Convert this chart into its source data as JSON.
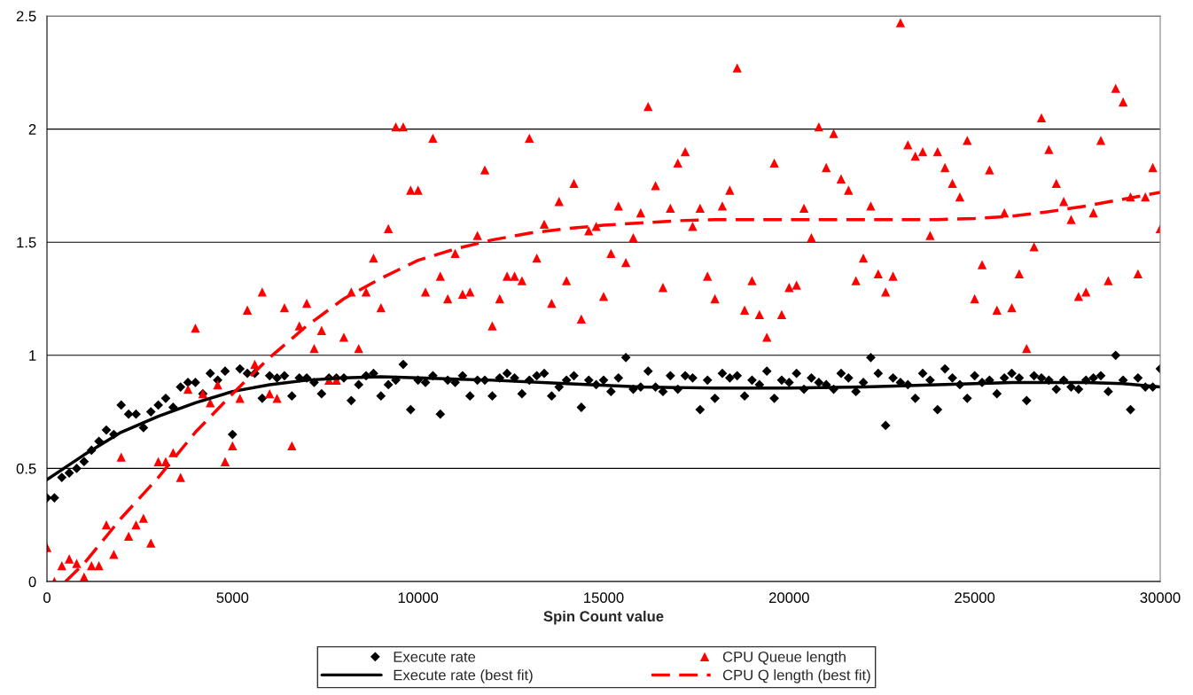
{
  "chart_data": {
    "type": "scatter",
    "xlabel": "Spin Count value",
    "xlim": [
      0,
      30000
    ],
    "xticks": [
      0,
      5000,
      10000,
      15000,
      20000,
      25000,
      30000
    ],
    "ylim": [
      0,
      2.5
    ],
    "yticks": [
      0,
      0.5,
      1,
      1.5,
      2,
      2.5
    ],
    "grid": "y",
    "legend": "bottom",
    "x": [
      0,
      200,
      400,
      600,
      800,
      1000,
      1200,
      1400,
      1600,
      1800,
      2000,
      2200,
      2400,
      2600,
      2800,
      3000,
      3200,
      3400,
      3600,
      3800,
      4000,
      4200,
      4400,
      4600,
      4800,
      5000,
      5200,
      5400,
      5600,
      5800,
      6000,
      6200,
      6400,
      6600,
      6800,
      7000,
      7200,
      7400,
      7600,
      7800,
      8000,
      8200,
      8400,
      8600,
      8800,
      9000,
      9200,
      9400,
      9600,
      9800,
      10000,
      10200,
      10400,
      10600,
      10800,
      11000,
      11200,
      11400,
      11600,
      11800,
      12000,
      12200,
      12400,
      12600,
      12800,
      13000,
      13200,
      13400,
      13600,
      13800,
      14000,
      14200,
      14400,
      14600,
      14800,
      15000,
      15200,
      15400,
      15600,
      15800,
      16000,
      16200,
      16400,
      16600,
      16800,
      17000,
      17200,
      17400,
      17600,
      17800,
      18000,
      18200,
      18400,
      18600,
      18800,
      19000,
      19200,
      19400,
      19600,
      19800,
      20000,
      20200,
      20400,
      20600,
      20800,
      21000,
      21200,
      21400,
      21600,
      21800,
      22000,
      22200,
      22400,
      22600,
      22800,
      23000,
      23200,
      23400,
      23600,
      23800,
      24000,
      24200,
      24400,
      24600,
      24800,
      25000,
      25200,
      25400,
      25600,
      25800,
      26000,
      26200,
      26400,
      26600,
      26800,
      27000,
      27200,
      27400,
      27600,
      27800,
      28000,
      28200,
      28400,
      28600,
      28800,
      29000,
      29200,
      29400,
      29600,
      29800,
      30000
    ],
    "series": [
      {
        "name": "Execute rate",
        "marker": "diamond",
        "color": "#000000",
        "values": [
          0.37,
          0.37,
          0.46,
          0.48,
          0.5,
          0.53,
          0.58,
          0.62,
          0.67,
          0.65,
          0.78,
          0.74,
          0.74,
          0.68,
          0.75,
          0.78,
          0.81,
          0.77,
          0.86,
          0.88,
          0.88,
          0.83,
          0.92,
          0.89,
          0.93,
          0.65,
          0.94,
          0.92,
          0.92,
          0.81,
          0.91,
          0.9,
          0.91,
          0.82,
          0.9,
          0.9,
          0.88,
          0.83,
          0.9,
          0.9,
          0.9,
          0.8,
          0.87,
          0.91,
          0.92,
          0.82,
          0.87,
          0.89,
          0.96,
          0.76,
          0.89,
          0.88,
          0.91,
          0.74,
          0.89,
          0.88,
          0.91,
          0.82,
          0.89,
          0.89,
          0.82,
          0.9,
          0.92,
          0.9,
          0.83,
          0.89,
          0.91,
          0.92,
          0.82,
          0.86,
          0.89,
          0.91,
          0.77,
          0.89,
          0.87,
          0.89,
          0.84,
          0.9,
          0.99,
          0.85,
          0.86,
          0.93,
          0.86,
          0.84,
          0.91,
          0.85,
          0.91,
          0.9,
          0.76,
          0.89,
          0.81,
          0.92,
          0.9,
          0.91,
          0.82,
          0.89,
          0.87,
          0.93,
          0.81,
          0.89,
          0.88,
          0.92,
          0.85,
          0.9,
          0.88,
          0.87,
          0.85,
          0.92,
          0.9,
          0.84,
          0.88,
          0.99,
          0.92,
          0.69,
          0.9,
          0.88,
          0.87,
          0.81,
          0.92,
          0.89,
          0.76,
          0.94,
          0.9,
          0.87,
          0.81,
          0.91,
          0.88,
          0.89,
          0.83,
          0.9,
          0.92,
          0.9,
          0.8,
          0.91,
          0.9,
          0.89,
          0.85,
          0.89,
          0.86,
          0.85,
          0.89,
          0.9,
          0.91,
          0.84,
          1.0,
          0.89,
          0.76,
          0.9,
          0.86,
          0.86,
          0.94
        ]
      },
      {
        "name": "CPU Queue length",
        "marker": "triangle",
        "color": "#ff0000",
        "values": [
          0.15,
          0.0,
          0.07,
          0.1,
          0.08,
          0.02,
          0.07,
          0.07,
          0.25,
          0.12,
          0.55,
          0.2,
          0.25,
          0.28,
          0.17,
          0.53,
          0.53,
          0.57,
          0.46,
          0.85,
          1.12,
          0.83,
          0.79,
          0.87,
          0.53,
          0.6,
          0.81,
          1.2,
          0.96,
          1.28,
          0.83,
          0.81,
          1.21,
          0.6,
          1.13,
          1.23,
          1.03,
          1.11,
          0.89,
          0.89,
          1.08,
          1.28,
          1.03,
          1.28,
          1.43,
          1.21,
          1.56,
          2.01,
          2.01,
          1.73,
          1.73,
          1.28,
          1.96,
          1.35,
          1.25,
          1.45,
          1.27,
          1.28,
          1.53,
          1.82,
          1.13,
          1.25,
          1.35,
          1.35,
          1.33,
          1.96,
          1.43,
          1.58,
          1.23,
          1.68,
          1.33,
          1.76,
          1.16,
          1.55,
          1.57,
          1.26,
          1.45,
          1.66,
          1.41,
          1.52,
          1.63,
          2.1,
          1.75,
          1.3,
          1.65,
          1.85,
          1.9,
          1.57,
          1.65,
          1.35,
          1.25,
          1.66,
          1.73,
          2.27,
          1.2,
          1.33,
          1.18,
          1.08,
          1.85,
          1.18,
          1.3,
          1.31,
          1.65,
          1.52,
          2.01,
          1.83,
          1.98,
          1.78,
          1.73,
          1.33,
          1.43,
          1.66,
          1.36,
          1.28,
          1.35,
          2.47,
          1.93,
          1.88,
          1.9,
          1.53,
          1.9,
          1.83,
          1.76,
          1.7,
          1.95,
          1.25,
          1.4,
          1.82,
          1.2,
          1.63,
          1.21,
          1.36,
          1.03,
          1.48,
          2.05,
          1.91,
          1.76,
          1.68,
          1.6,
          1.26,
          1.28,
          1.63,
          1.95,
          1.33,
          2.18,
          2.12,
          1.7,
          1.36,
          1.7,
          1.83,
          1.56
        ]
      },
      {
        "name": "Execute rate (best fit)",
        "type": "line",
        "line_style": "solid",
        "color": "#000000",
        "x": [
          0,
          1000,
          2000,
          3000,
          4000,
          5000,
          6000,
          7000,
          8000,
          9000,
          10000,
          12000,
          14000,
          16000,
          18000,
          20000,
          22000,
          24000,
          26000,
          27000,
          28000,
          29000,
          30000
        ],
        "values": [
          0.45,
          0.56,
          0.66,
          0.73,
          0.79,
          0.84,
          0.87,
          0.89,
          0.9,
          0.905,
          0.9,
          0.89,
          0.875,
          0.86,
          0.855,
          0.855,
          0.86,
          0.87,
          0.88,
          0.88,
          0.88,
          0.875,
          0.86
        ]
      },
      {
        "name": "CPU Q length (best fit)",
        "type": "line",
        "line_style": "dashed",
        "color": "#ff0000",
        "x": [
          500,
          1000,
          2000,
          3000,
          4000,
          5000,
          6000,
          7000,
          8000,
          9000,
          10000,
          11000,
          12000,
          13000,
          14000,
          15000,
          16000,
          17000,
          18000,
          20000,
          22000,
          24000,
          25000,
          26000,
          27000,
          28000,
          29000,
          30000
        ],
        "values": [
          0,
          0.08,
          0.28,
          0.46,
          0.66,
          0.83,
          0.99,
          1.13,
          1.25,
          1.34,
          1.42,
          1.47,
          1.51,
          1.54,
          1.56,
          1.575,
          1.585,
          1.595,
          1.6,
          1.6,
          1.6,
          1.6,
          1.605,
          1.615,
          1.635,
          1.66,
          1.69,
          1.72
        ]
      }
    ]
  }
}
